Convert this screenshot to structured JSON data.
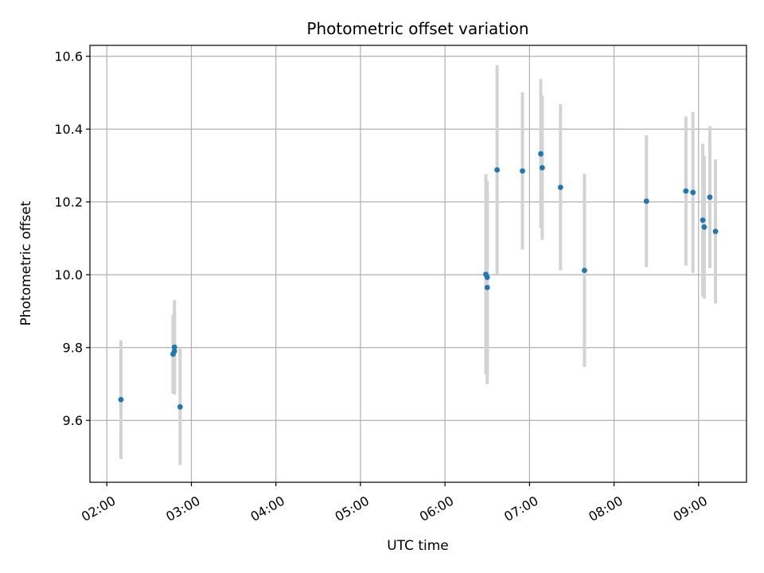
{
  "chart_data": {
    "type": "scatter",
    "title": "Photometric offset variation",
    "xlabel": "UTC time",
    "ylabel": "Photometric offset",
    "x_tick_labels": [
      "02:00",
      "03:00",
      "04:00",
      "05:00",
      "06:00",
      "07:00",
      "08:00",
      "09:00"
    ],
    "y_tick_labels": [
      "9.6",
      "9.8",
      "10.0",
      "10.2",
      "10.4",
      "10.6"
    ],
    "xlim": [
      "01:48",
      "09:34"
    ],
    "ylim": [
      9.43,
      10.63
    ],
    "grid": true,
    "colors": {
      "point": "#1f77b4",
      "errorbar": "#d3d3d3",
      "grid": "#b0b0b0"
    },
    "points": [
      {
        "x": "02:10",
        "y": 9.657,
        "err": 0.163
      },
      {
        "x": "02:47",
        "y": 9.782,
        "err": 0.108
      },
      {
        "x": "02:48",
        "y": 9.79,
        "err": 0.113
      },
      {
        "x": "02:48",
        "y": 9.801,
        "err": 0.13
      },
      {
        "x": "02:52",
        "y": 9.637,
        "err": 0.16
      },
      {
        "x": "06:29",
        "y": 10.001,
        "err": 0.275
      },
      {
        "x": "06:30",
        "y": 9.993,
        "err": 0.265
      },
      {
        "x": "06:30",
        "y": 9.965,
        "err": 0.265
      },
      {
        "x": "06:37",
        "y": 10.288,
        "err": 0.288
      },
      {
        "x": "06:55",
        "y": 10.285,
        "err": 0.216
      },
      {
        "x": "07:08",
        "y": 10.332,
        "err": 0.205
      },
      {
        "x": "07:09",
        "y": 10.294,
        "err": 0.198
      },
      {
        "x": "07:22",
        "y": 10.24,
        "err": 0.228
      },
      {
        "x": "07:39",
        "y": 10.012,
        "err": 0.265
      },
      {
        "x": "08:23",
        "y": 10.202,
        "err": 0.181
      },
      {
        "x": "08:51",
        "y": 10.23,
        "err": 0.205
      },
      {
        "x": "08:56",
        "y": 10.226,
        "err": 0.221
      },
      {
        "x": "09:03",
        "y": 10.15,
        "err": 0.21
      },
      {
        "x": "09:04",
        "y": 10.131,
        "err": 0.196
      },
      {
        "x": "09:08",
        "y": 10.213,
        "err": 0.195
      },
      {
        "x": "09:12",
        "y": 10.119,
        "err": 0.198
      }
    ]
  }
}
